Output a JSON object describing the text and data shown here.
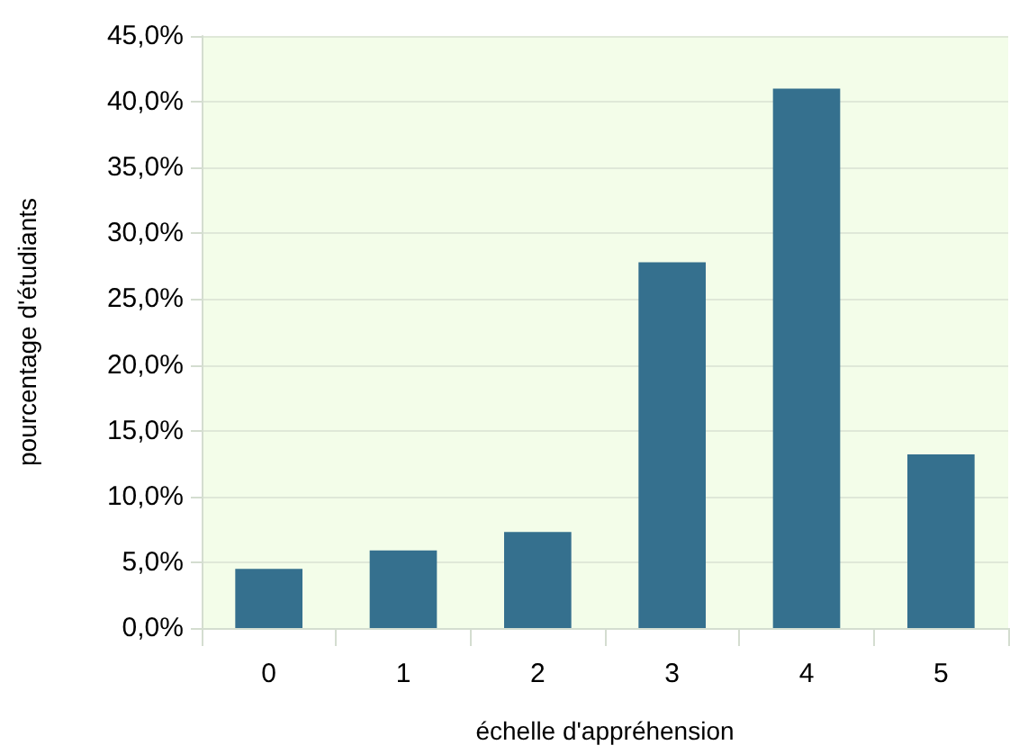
{
  "chart_data": {
    "type": "bar",
    "xlabel": "échelle d'appréhension",
    "ylabel": "pourcentage d'étudiants",
    "categories": [
      "0",
      "1",
      "2",
      "3",
      "4",
      "5"
    ],
    "values": [
      4.5,
      5.9,
      7.3,
      27.8,
      41.0,
      13.2
    ],
    "color": "#35708e",
    "ylim": [
      0,
      45
    ],
    "yticks": [
      {
        "value": 0,
        "label": "0,0%"
      },
      {
        "value": 5,
        "label": "5,0%"
      },
      {
        "value": 10,
        "label": "10,0%"
      },
      {
        "value": 15,
        "label": "15,0%"
      },
      {
        "value": 20,
        "label": "20,0%"
      },
      {
        "value": 25,
        "label": "25,0%"
      },
      {
        "value": 30,
        "label": "30,0%"
      },
      {
        "value": 35,
        "label": "35,0%"
      },
      {
        "value": 40,
        "label": "40,0%"
      },
      {
        "value": 45,
        "label": "45,0%"
      }
    ],
    "grid": "y"
  }
}
